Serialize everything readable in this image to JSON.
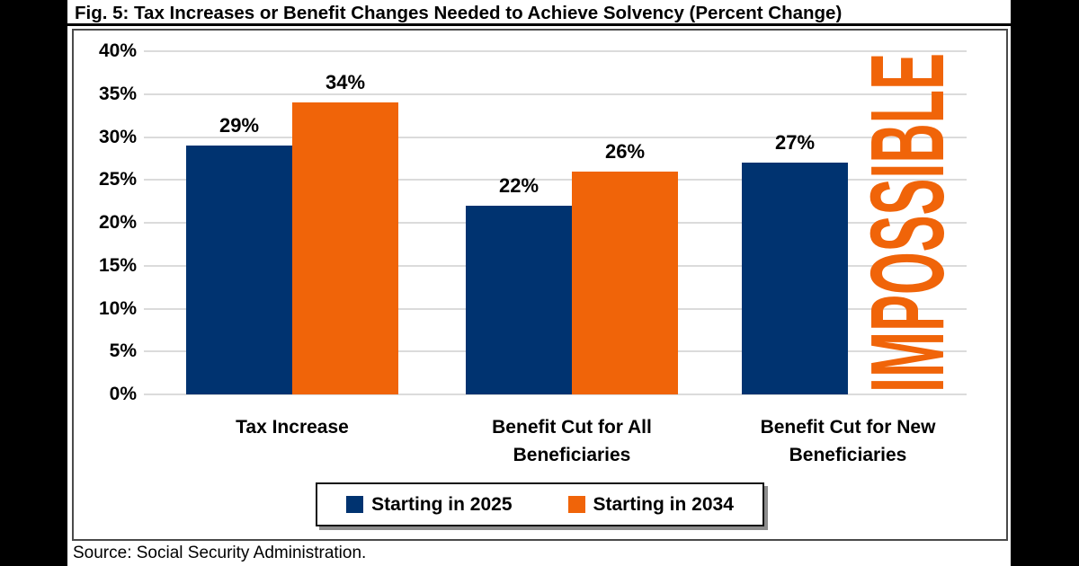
{
  "source": "Source: Social Security Administration.",
  "chart_data": {
    "type": "bar",
    "title": "Fig. 5: Tax Increases or Benefit Changes Needed to Achieve Solvency (Percent Change)",
    "categories": [
      "Tax Increase",
      "Benefit Cut for All\nBeneficiaries",
      "Benefit Cut for New\nBeneficiaries"
    ],
    "series": [
      {
        "name": "Starting in 2025",
        "color": "#003370",
        "values": [
          29,
          22,
          27
        ]
      },
      {
        "name": "Starting in 2034",
        "color": "#F06409",
        "values": [
          34,
          26,
          null
        ]
      }
    ],
    "annotation": {
      "text": "IMPOSSIBLE",
      "applies_to": "Starting in 2034 bar of Benefit Cut for New Beneficiaries",
      "color": "#F06409",
      "orientation": "vertical"
    },
    "value_suffix": "%",
    "ylim": [
      0,
      40
    ],
    "ytick_step": 5,
    "ytick_suffix": "%",
    "grid": true,
    "legend_position": "bottom-center",
    "colors": {
      "series_2025": "#003370",
      "series_2034": "#F06409",
      "gridline": "#DBDBDB"
    }
  }
}
